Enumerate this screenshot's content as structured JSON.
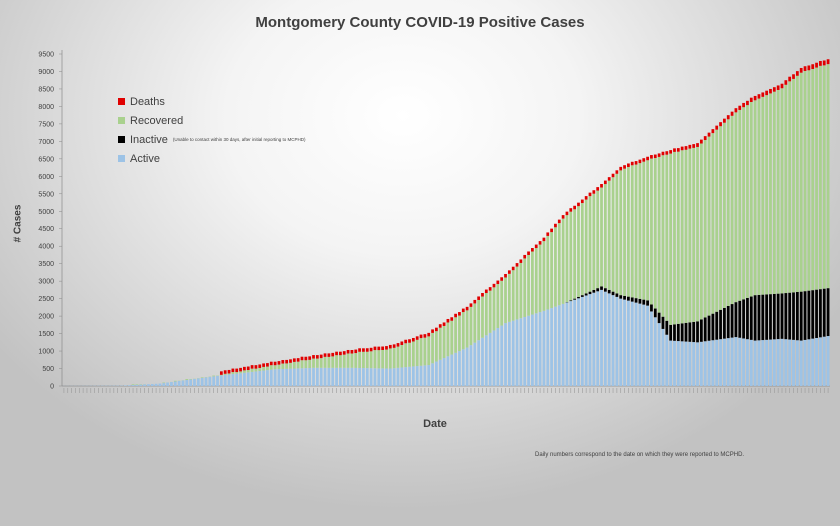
{
  "chart_data": {
    "type": "bar",
    "stacked": true,
    "title": "Montgomery County COVID-19 Positive Cases",
    "xlabel": "Date",
    "ylabel": "# Cases",
    "ylim": [
      0,
      9500
    ],
    "yticks": [
      0,
      500,
      1000,
      1500,
      2000,
      2500,
      3000,
      3500,
      4000,
      4500,
      5000,
      5500,
      6000,
      6500,
      7000,
      7500,
      8000,
      8500,
      9000,
      9500
    ],
    "grid": false,
    "legend_position": "top-left",
    "footnote": "Daily numbers correspond to the date on which they were reported to MCPHD.",
    "colors": {
      "active": "#9dc3e6",
      "inactive": "#000000",
      "recovered": "#a9d18e",
      "deaths": "#e00000"
    },
    "legend": [
      {
        "key": "deaths",
        "label": "Deaths",
        "note": ""
      },
      {
        "key": "recovered",
        "label": "Recovered",
        "note": ""
      },
      {
        "key": "inactive",
        "label": "Inactive",
        "note": "(Unable to contact within 30 days, after initial reporting to MCPHD)"
      },
      {
        "key": "active",
        "label": "Active",
        "note": ""
      }
    ],
    "x_count": 200,
    "series_keyframes": {
      "index": [
        0,
        15,
        25,
        40,
        55,
        65,
        75,
        85,
        95,
        105,
        115,
        125,
        130,
        140,
        145,
        152,
        158,
        165,
        175,
        180,
        187,
        192,
        199
      ],
      "total": [
        2,
        10,
        70,
        300,
        600,
        780,
        950,
        1080,
        1450,
        2200,
        3150,
        4200,
        4850,
        5750,
        6250,
        6550,
        6750,
        6950,
        7950,
        8300,
        8650,
        9100,
        9350
      ],
      "active": [
        2,
        10,
        70,
        290,
        480,
        520,
        520,
        500,
        600,
        1100,
        1800,
        2150,
        2350,
        2750,
        2500,
        2300,
        1300,
        1250,
        1400,
        1300,
        1350,
        1300,
        1430
      ],
      "inactive": [
        0,
        0,
        0,
        0,
        0,
        0,
        0,
        0,
        0,
        0,
        0,
        0,
        0,
        100,
        100,
        150,
        450,
        600,
        1000,
        1300,
        1300,
        1400,
        1370
      ],
      "deaths": [
        0,
        0,
        0,
        0,
        5,
        15,
        20,
        25,
        30,
        35,
        45,
        55,
        60,
        70,
        80,
        90,
        100,
        110,
        120,
        125,
        130,
        135,
        140
      ]
    }
  }
}
